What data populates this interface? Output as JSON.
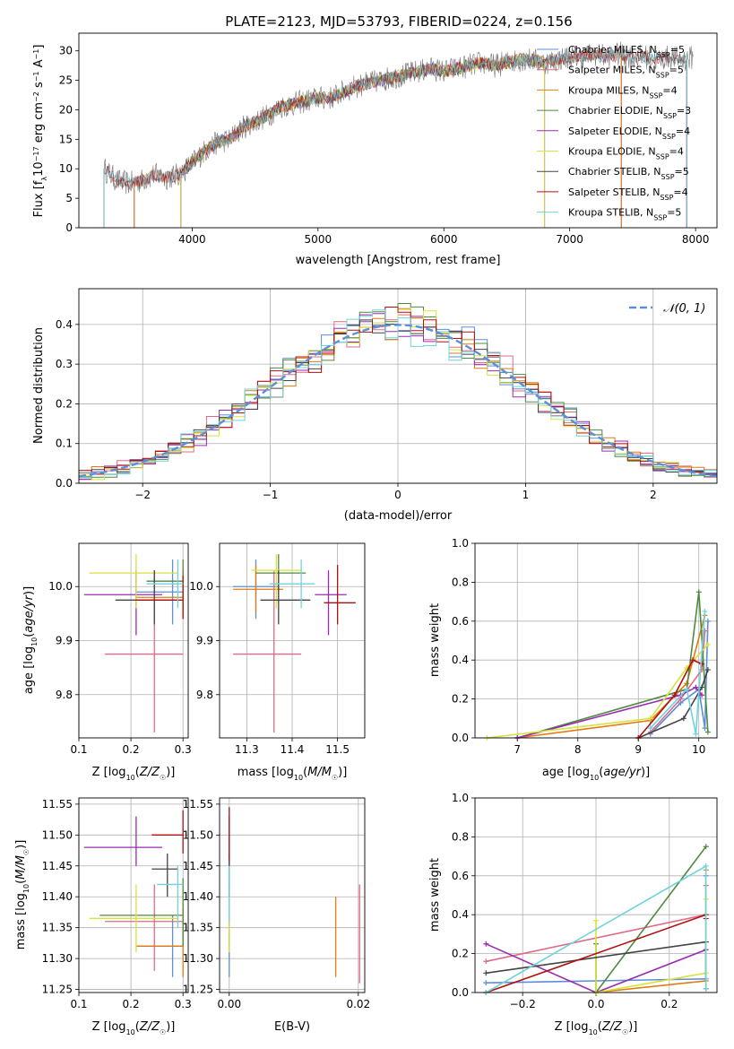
{
  "figure": {
    "title": "PLATE=2123, MJD=53793, FIBERID=0224, z=0.156"
  },
  "chart_data": [
    {
      "id": "spectrum",
      "type": "line",
      "title": "PLATE=2123, MJD=53793, FIBERID=0224, z=0.156",
      "xlabel": "wavelength [Angstrom, rest frame]",
      "ylabel": "Flux [f_λ10^-17 erg cm^-2 s^-1 A^-1]",
      "xlim": [
        3100,
        8170
      ],
      "ylim": [
        0,
        33
      ],
      "xticks": [
        "4000",
        "5000",
        "6000",
        "7000",
        "8000"
      ],
      "yticks": [
        "0",
        "5",
        "10",
        "15",
        "20",
        "25",
        "30"
      ],
      "grid": false,
      "legend_position": "top-right",
      "observed": {
        "x": [
          3300,
          3400,
          3500,
          3600,
          3700,
          3800,
          3900,
          4000,
          4100,
          4200,
          4300,
          4400,
          4500,
          4600,
          4700,
          4800,
          4900,
          5000,
          5100,
          5200,
          5300,
          5400,
          5500,
          5600,
          5700,
          5800,
          5900,
          6000,
          6100,
          6200,
          6300,
          6400,
          6500,
          6600,
          6700,
          6800,
          6900,
          7000,
          7100,
          7200,
          7300,
          7400,
          7500,
          7600,
          7700,
          7800,
          7900,
          8000
        ],
        "y": [
          10,
          8,
          7.5,
          8,
          9,
          8.5,
          9,
          11,
          13,
          14.5,
          15,
          17,
          18,
          19,
          20.5,
          21,
          21.5,
          22,
          22,
          23,
          24,
          24.5,
          25,
          25.5,
          26,
          26.5,
          27,
          26.5,
          27,
          27.5,
          28,
          27.5,
          28,
          28.5,
          28.5,
          28,
          28.5,
          29,
          29,
          29.5,
          29,
          29.5,
          29,
          29,
          28.5,
          29,
          28.5,
          29
        ]
      },
      "series": [
        {
          "name": "Chabrier MILES, N_SSP=5",
          "color": "#5b8fd9",
          "x_start": 3540,
          "x_end": 7410
        },
        {
          "name": "Salpeter MILES, N_SSP=5",
          "color": "#e06a86",
          "x_start": 3540,
          "x_end": 7410
        },
        {
          "name": "Kroupa MILES, N_SSP=4",
          "color": "#e07b10",
          "x_start": 3540,
          "x_end": 7410
        },
        {
          "name": "Chabrier ELODIE, N_SSP=3",
          "color": "#4e8a3e",
          "x_start": 3910,
          "x_end": 6800
        },
        {
          "name": "Salpeter ELODIE, N_SSP=4",
          "color": "#9a2bb0",
          "x_start": 3910,
          "x_end": 6800
        },
        {
          "name": "Kroupa ELODIE, N_SSP=4",
          "color": "#d8e23a",
          "x_start": 3910,
          "x_end": 6800
        },
        {
          "name": "Chabrier STELIB, N_SSP=5",
          "color": "#444444",
          "x_start": 3300,
          "x_end": 7930
        },
        {
          "name": "Salpeter STELIB, N_SSP=4",
          "color": "#b01010",
          "x_start": 3300,
          "x_end": 7930
        },
        {
          "name": "Kroupa STELIB, N_SSP=5",
          "color": "#6fd3dc",
          "x_start": 3300,
          "x_end": 7930
        }
      ]
    },
    {
      "id": "residuals",
      "type": "line",
      "xlabel": "(data-model)/error",
      "ylabel": "Normed distribution",
      "xlim": [
        -2.5,
        2.5
      ],
      "ylim": [
        0,
        0.49
      ],
      "xticks": [
        "−2",
        "−1",
        "0",
        "1",
        "2"
      ],
      "yticks": [
        "0.0",
        "0.1",
        "0.2",
        "0.3",
        "0.4"
      ],
      "grid": true,
      "legend_position": "top-right",
      "reference_curve": {
        "name": "N(0,1)",
        "color": "#5b8fd9",
        "style": "dashed"
      },
      "bin_width": 0.1
    },
    {
      "id": "age-vs-Z",
      "type": "scatter",
      "xlabel": "Z [log10(Z/Z☉)]",
      "ylabel": "age  [log10(age/yr)]",
      "xlim": [
        0.1,
        0.31
      ],
      "ylim": [
        9.72,
        10.08
      ],
      "xticks": [
        "0.1",
        "0.2",
        "0.3"
      ],
      "yticks": [
        "9.8",
        "9.9",
        "10.0"
      ],
      "grid": true,
      "points": [
        {
          "color": "#5b8fd9",
          "x": 0.28,
          "xerr": [
            0.21,
            0.3
          ],
          "y": 9.99,
          "yerr": [
            9.93,
            10.05
          ]
        },
        {
          "color": "#e06a86",
          "x": 0.245,
          "xerr": [
            0.15,
            0.3
          ],
          "y": 9.875,
          "yerr": [
            9.73,
            10.03
          ]
        },
        {
          "color": "#e07b10",
          "x": 0.3,
          "xerr": [
            0.21,
            0.3
          ],
          "y": 9.98,
          "yerr": [
            9.94,
            10.03
          ]
        },
        {
          "color": "#4e8a3e",
          "x": 0.3,
          "xerr": [
            0.23,
            0.3
          ],
          "y": 10.01,
          "yerr": [
            9.96,
            10.05
          ]
        },
        {
          "color": "#9a2bb0",
          "x": 0.21,
          "xerr": [
            0.11,
            0.26
          ],
          "y": 9.985,
          "yerr": [
            9.91,
            10.03
          ]
        },
        {
          "color": "#d8e23a",
          "x": 0.21,
          "xerr": [
            0.12,
            0.29
          ],
          "y": 10.025,
          "yerr": [
            9.96,
            10.06
          ]
        },
        {
          "color": "#444444",
          "x": 0.245,
          "xerr": [
            0.17,
            0.29
          ],
          "y": 9.975,
          "yerr": [
            9.93,
            10.03
          ]
        },
        {
          "color": "#b01010",
          "x": 0.3,
          "xerr": [
            0.21,
            0.3
          ],
          "y": 9.975,
          "yerr": [
            9.94,
            10.02
          ]
        },
        {
          "color": "#6fd3dc",
          "x": 0.29,
          "xerr": [
            0.23,
            0.3
          ],
          "y": 10.005,
          "yerr": [
            9.96,
            10.05
          ]
        }
      ]
    },
    {
      "id": "age-vs-mass",
      "type": "scatter",
      "xlabel": "mass [log10(M/M☉)]",
      "ylabel": "",
      "xlim": [
        11.24,
        11.56
      ],
      "ylim": [
        9.72,
        10.08
      ],
      "xticks": [
        "11.3",
        "11.4",
        "11.5"
      ],
      "yticks": [
        "9.8",
        "9.9",
        "10.0"
      ],
      "grid": true,
      "points": [
        {
          "color": "#5b8fd9",
          "x": 11.32,
          "xerr": [
            11.27,
            11.37
          ],
          "y": 10.0,
          "yerr": [
            9.94,
            10.05
          ]
        },
        {
          "color": "#e06a86",
          "x": 11.36,
          "xerr": [
            11.27,
            11.42
          ],
          "y": 9.875,
          "yerr": [
            9.73,
            10.03
          ]
        },
        {
          "color": "#e07b10",
          "x": 11.32,
          "xerr": [
            11.27,
            11.38
          ],
          "y": 9.995,
          "yerr": [
            9.95,
            10.04
          ]
        },
        {
          "color": "#4e8a3e",
          "x": 11.37,
          "xerr": [
            11.32,
            11.43
          ],
          "y": 10.025,
          "yerr": [
            9.97,
            10.06
          ]
        },
        {
          "color": "#9a2bb0",
          "x": 11.48,
          "xerr": [
            11.45,
            11.52
          ],
          "y": 9.985,
          "yerr": [
            9.91,
            10.03
          ]
        },
        {
          "color": "#d8e23a",
          "x": 11.365,
          "xerr": [
            11.31,
            11.42
          ],
          "y": 10.03,
          "yerr": [
            9.96,
            10.06
          ]
        },
        {
          "color": "#444444",
          "x": 11.37,
          "xerr": [
            11.33,
            11.44
          ],
          "y": 9.975,
          "yerr": [
            9.93,
            10.03
          ]
        },
        {
          "color": "#b01010",
          "x": 11.5,
          "xerr": [
            11.47,
            11.54
          ],
          "y": 9.97,
          "yerr": [
            9.93,
            10.04
          ]
        },
        {
          "color": "#6fd3dc",
          "x": 11.42,
          "xerr": [
            11.35,
            11.45
          ],
          "y": 10.005,
          "yerr": [
            9.96,
            10.05
          ]
        }
      ]
    },
    {
      "id": "weight-vs-age",
      "type": "line",
      "xlabel": "age  [log10(age/yr)]",
      "ylabel": "mass weight",
      "xlim": [
        6.3,
        10.3
      ],
      "ylim": [
        0,
        1
      ],
      "xticks": [
        "7",
        "8",
        "9",
        "10"
      ],
      "yticks": [
        "0.0",
        "0.2",
        "0.4",
        "0.6",
        "0.8",
        "1.0"
      ],
      "grid": true,
      "series": [
        {
          "color": "#5b8fd9",
          "x": [
            9.2,
            9.7,
            10.0,
            10.1,
            10.15
          ],
          "y": [
            0.02,
            0.18,
            0.25,
            0.05,
            0.6
          ]
        },
        {
          "color": "#e06a86",
          "x": [
            9.2,
            9.7,
            10.05,
            10.1
          ],
          "y": [
            0.03,
            0.2,
            0.35,
            0.55
          ]
        },
        {
          "color": "#e07b10",
          "x": [
            7.0,
            9.2,
            9.8,
            10.1
          ],
          "y": [
            0.0,
            0.09,
            0.28,
            0.63
          ]
        },
        {
          "color": "#4e8a3e",
          "x": [
            7.0,
            9.8,
            10.0,
            10.15
          ],
          "y": [
            0.0,
            0.25,
            0.75,
            0.03
          ]
        },
        {
          "color": "#9a2bb0",
          "x": [
            7.0,
            9.7,
            9.95,
            10.05
          ],
          "y": [
            0.0,
            0.22,
            0.26,
            0.22
          ]
        },
        {
          "color": "#d8e23a",
          "x": [
            6.5,
            9.2,
            9.8,
            10.15
          ],
          "y": [
            0.0,
            0.1,
            0.36,
            0.48
          ]
        },
        {
          "color": "#444444",
          "x": [
            9.0,
            9.75,
            10.05,
            10.15
          ],
          "y": [
            0.0,
            0.1,
            0.26,
            0.35
          ]
        },
        {
          "color": "#b01010",
          "x": [
            9.0,
            9.6,
            9.9,
            10.05
          ],
          "y": [
            0.0,
            0.22,
            0.4,
            0.38
          ]
        },
        {
          "color": "#6fd3dc",
          "x": [
            9.2,
            9.8,
            9.95,
            10.1
          ],
          "y": [
            0.05,
            0.25,
            0.02,
            0.65
          ]
        }
      ]
    },
    {
      "id": "mass-vs-Z",
      "type": "scatter",
      "xlabel": "Z [log10(Z/Z☉)]",
      "ylabel": "mass [log10(M/M☉)]",
      "xlim": [
        0.1,
        0.31
      ],
      "ylim": [
        11.245,
        11.56
      ],
      "xticks": [
        "0.1",
        "0.2",
        "0.3"
      ],
      "yticks": [
        "11.25",
        "11.30",
        "11.35",
        "11.40",
        "11.45",
        "11.50",
        "11.55"
      ],
      "grid": true,
      "points": [
        {
          "color": "#5b8fd9",
          "x": 0.28,
          "xerr": [
            0.21,
            0.3
          ],
          "y": 11.32,
          "yerr": [
            11.27,
            11.37
          ]
        },
        {
          "color": "#e06a86",
          "x": 0.245,
          "xerr": [
            0.15,
            0.3
          ],
          "y": 11.36,
          "yerr": [
            11.28,
            11.42
          ]
        },
        {
          "color": "#e07b10",
          "x": 0.3,
          "xerr": [
            0.21,
            0.3
          ],
          "y": 11.32,
          "yerr": [
            11.27,
            11.38
          ]
        },
        {
          "color": "#4e8a3e",
          "x": 0.3,
          "xerr": [
            0.14,
            0.3
          ],
          "y": 11.37,
          "yerr": [
            11.32,
            11.43
          ]
        },
        {
          "color": "#9a2bb0",
          "x": 0.21,
          "xerr": [
            0.11,
            0.26
          ],
          "y": 11.48,
          "yerr": [
            11.45,
            11.53
          ]
        },
        {
          "color": "#d8e23a",
          "x": 0.21,
          "xerr": [
            0.12,
            0.29
          ],
          "y": 11.365,
          "yerr": [
            11.31,
            11.42
          ]
        },
        {
          "color": "#444444",
          "x": 0.27,
          "xerr": [
            0.24,
            0.29
          ],
          "y": 11.445,
          "yerr": [
            11.4,
            11.47
          ]
        },
        {
          "color": "#b01010",
          "x": 0.3,
          "xerr": [
            0.24,
            0.3
          ],
          "y": 11.5,
          "yerr": [
            11.47,
            11.54
          ]
        },
        {
          "color": "#6fd3dc",
          "x": 0.29,
          "xerr": [
            0.25,
            0.3
          ],
          "y": 11.42,
          "yerr": [
            11.35,
            11.45
          ]
        }
      ]
    },
    {
      "id": "mass-vs-EBV",
      "type": "scatter",
      "xlabel": "E(B-V)",
      "ylabel": "",
      "xlim": [
        -0.0015,
        0.021
      ],
      "ylim": [
        11.245,
        11.56
      ],
      "xticks": [
        "0.00",
        "0.02"
      ],
      "yticks": [
        "11.25",
        "11.30",
        "11.35",
        "11.40",
        "11.45",
        "11.50",
        "11.55"
      ],
      "grid": true,
      "points": [
        {
          "color": "#5b8fd9",
          "x": 0.0,
          "y": 11.32,
          "yerr": [
            11.27,
            11.37
          ]
        },
        {
          "color": "#e06a86",
          "x": 0.0202,
          "y": 11.36,
          "yerr": [
            11.26,
            11.42
          ]
        },
        {
          "color": "#e07b10",
          "x": 0.0165,
          "y": 11.335,
          "yerr": [
            11.27,
            11.4
          ]
        },
        {
          "color": "#4e8a3e",
          "x": 0.0,
          "y": 11.37,
          "yerr": [
            11.32,
            11.43
          ]
        },
        {
          "color": "#9a2bb0",
          "x": 0.0,
          "y": 11.48,
          "yerr": [
            11.45,
            11.53
          ]
        },
        {
          "color": "#d8e23a",
          "x": 0.0,
          "y": 11.365,
          "yerr": [
            11.31,
            11.4
          ]
        },
        {
          "color": "#444444",
          "x": 0.0,
          "y": 11.445,
          "yerr": [
            11.4,
            11.47
          ]
        },
        {
          "color": "#b01010",
          "x": 0.0,
          "y": 11.5,
          "yerr": [
            11.46,
            11.545
          ]
        },
        {
          "color": "#6fd3dc",
          "x": 0.0,
          "y": 11.42,
          "yerr": [
            11.36,
            11.45
          ]
        }
      ]
    },
    {
      "id": "weight-vs-Z",
      "type": "line",
      "xlabel": "Z [log10(Z/Z☉)]",
      "ylabel": "mass weight",
      "xlim": [
        -0.33,
        0.33
      ],
      "ylim": [
        0,
        1
      ],
      "xticks": [
        "−0.2",
        "0.0",
        "0.2"
      ],
      "yticks": [
        "0.0",
        "0.2",
        "0.4",
        "0.6",
        "0.8",
        "1.0"
      ],
      "grid": true,
      "series": [
        {
          "color": "#5b8fd9",
          "x": [
            -0.3,
            0.0,
            0.3,
            0.3
          ],
          "y": [
            0.05,
            0.06,
            0.07,
            0.6
          ]
        },
        {
          "color": "#e06a86",
          "x": [
            -0.3,
            0.3,
            0.3
          ],
          "y": [
            0.16,
            0.4,
            0.55
          ]
        },
        {
          "color": "#e07b10",
          "x": [
            0.0,
            0.3,
            0.3
          ],
          "y": [
            0.0,
            0.06,
            0.63
          ]
        },
        {
          "color": "#4e8a3e",
          "x": [
            0.0,
            0.0,
            0.3
          ],
          "y": [
            0.25,
            0.0,
            0.75
          ]
        },
        {
          "color": "#9a2bb0",
          "x": [
            -0.3,
            0.0,
            0.3,
            0.3
          ],
          "y": [
            0.25,
            0.0,
            0.22,
            0.26
          ]
        },
        {
          "color": "#d8e23a",
          "x": [
            0.0,
            0.0,
            0.3,
            0.3
          ],
          "y": [
            0.37,
            0.0,
            0.1,
            0.48
          ]
        },
        {
          "color": "#444444",
          "x": [
            -0.3,
            0.3,
            0.3
          ],
          "y": [
            0.1,
            0.26,
            0.02
          ]
        },
        {
          "color": "#b01010",
          "x": [
            -0.3,
            0.3,
            0.3
          ],
          "y": [
            0.0,
            0.4,
            0.38
          ]
        },
        {
          "color": "#6fd3dc",
          "x": [
            -0.3,
            0.3,
            0.3
          ],
          "y": [
            0.0,
            0.65,
            0.02
          ]
        }
      ]
    }
  ]
}
